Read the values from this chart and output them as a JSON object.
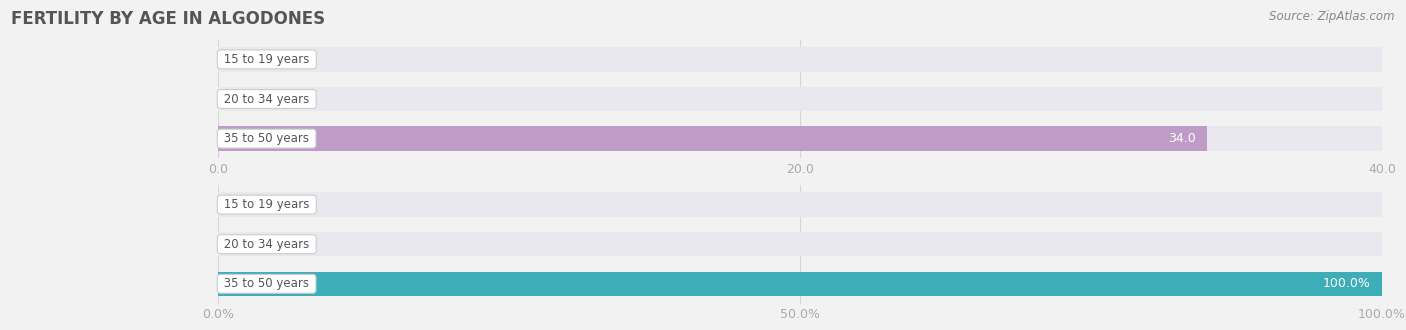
{
  "title": "FERTILITY BY AGE IN ALGODONES",
  "source": "Source: ZipAtlas.com",
  "top_chart": {
    "categories": [
      "15 to 19 years",
      "20 to 34 years",
      "35 to 50 years"
    ],
    "values": [
      0.0,
      0.0,
      34.0
    ],
    "xlim": [
      0.0,
      40.0
    ],
    "xticks": [
      0.0,
      20.0,
      40.0
    ],
    "bar_color": "#bf9cc7",
    "bar_bg_color": "#e8e8ee",
    "bar_height": 0.62
  },
  "bottom_chart": {
    "categories": [
      "15 to 19 years",
      "20 to 34 years",
      "35 to 50 years"
    ],
    "values": [
      0.0,
      0.0,
      100.0
    ],
    "xlim": [
      0.0,
      100.0
    ],
    "xticks": [
      0.0,
      50.0,
      100.0
    ],
    "xtick_labels": [
      "0.0%",
      "50.0%",
      "100.0%"
    ],
    "bar_color": "#3dadb8",
    "bar_bg_color": "#e8e8ee",
    "bar_height": 0.62
  },
  "bg_color": "#f2f2f2",
  "chart_bg_color": "#f2f2f2",
  "title_color": "#555555",
  "tick_color": "#aaaaaa",
  "source_color": "#888888",
  "label_box_color": "#ffffff",
  "label_text_color": "#555555",
  "grid_color": "#d0d0d0"
}
